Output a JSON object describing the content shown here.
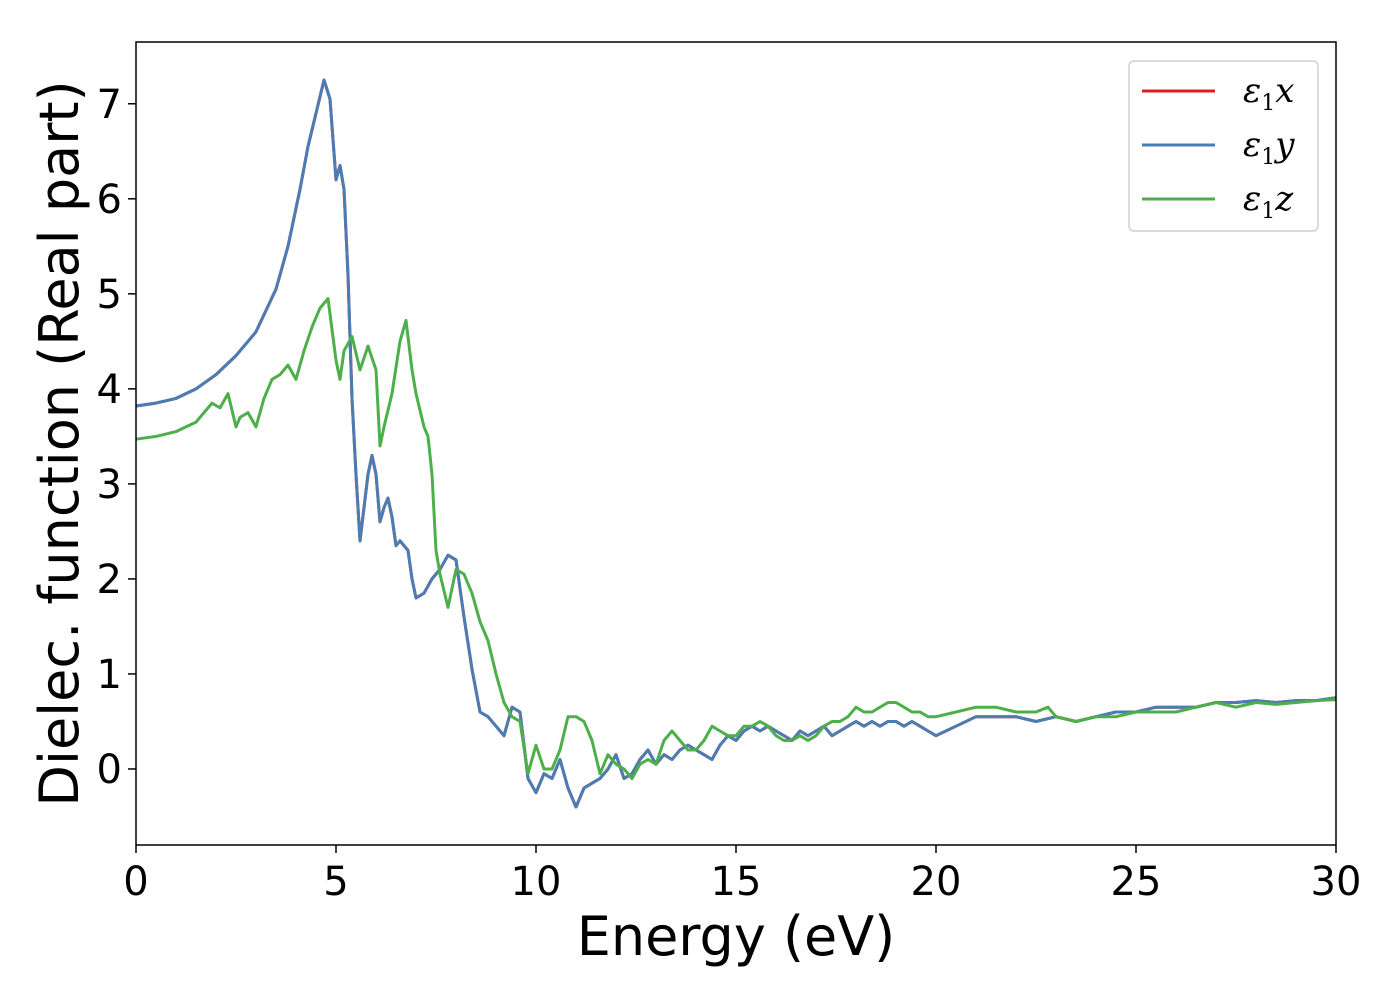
{
  "chart_data": {
    "type": "line",
    "title": "",
    "xlabel": "Energy (eV)",
    "ylabel": "Dielec. function (Real part)",
    "xlim": [
      0,
      30
    ],
    "ylim": [
      -0.8,
      7.65
    ],
    "xticks": [
      0,
      5,
      10,
      15,
      20,
      25,
      30
    ],
    "yticks": [
      0,
      1,
      2,
      3,
      4,
      5,
      6,
      7
    ],
    "grid": false,
    "legend_position": "top-right",
    "series": [
      {
        "name": "ε1x",
        "legend": {
          "base": "ε",
          "sub": "1",
          "tail": "x"
        },
        "color": "#e41a1c",
        "x": [
          0,
          0.5,
          1,
          1.5,
          2,
          2.5,
          3,
          3.5,
          3.8,
          4.1,
          4.3,
          4.5,
          4.7,
          4.85,
          5.0,
          5.1,
          5.2,
          5.3,
          5.4,
          5.5,
          5.6,
          5.8,
          5.9,
          6.0,
          6.1,
          6.2,
          6.3,
          6.4,
          6.5,
          6.6,
          6.8,
          6.9,
          7.0,
          7.2,
          7.4,
          7.6,
          7.8,
          8.0,
          8.2,
          8.4,
          8.6,
          8.8,
          9.0,
          9.2,
          9.4,
          9.6,
          9.8,
          10.0,
          10.2,
          10.4,
          10.6,
          10.8,
          11.0,
          11.2,
          11.4,
          11.6,
          11.8,
          12.0,
          12.2,
          12.4,
          12.6,
          12.8,
          13.0,
          13.2,
          13.4,
          13.6,
          13.8,
          14.0,
          14.2,
          14.4,
          14.6,
          14.8,
          15.0,
          15.2,
          15.4,
          15.6,
          15.8,
          16.0,
          16.2,
          16.4,
          16.6,
          16.8,
          17.0,
          17.2,
          17.4,
          17.6,
          17.8,
          18.0,
          18.2,
          18.4,
          18.6,
          18.8,
          19.0,
          19.2,
          19.4,
          19.6,
          19.8,
          20.0,
          20.5,
          21.0,
          21.5,
          22.0,
          22.5,
          23.0,
          23.5,
          24.0,
          24.5,
          25.0,
          25.5,
          26.0,
          26.5,
          27.0,
          27.5,
          28.0,
          28.5,
          29.0,
          29.5,
          30.0
        ],
        "y": [
          3.82,
          3.85,
          3.9,
          4.0,
          4.15,
          4.35,
          4.6,
          5.05,
          5.5,
          6.1,
          6.55,
          6.9,
          7.25,
          7.05,
          6.2,
          6.35,
          6.1,
          5.2,
          3.9,
          3.1,
          2.4,
          3.1,
          3.3,
          3.1,
          2.6,
          2.75,
          2.85,
          2.65,
          2.35,
          2.4,
          2.3,
          2.0,
          1.8,
          1.85,
          2.0,
          2.1,
          2.25,
          2.2,
          1.6,
          1.05,
          0.6,
          0.55,
          0.45,
          0.35,
          0.65,
          0.6,
          -0.1,
          -0.25,
          -0.05,
          -0.1,
          0.1,
          -0.2,
          -0.4,
          -0.2,
          -0.15,
          -0.1,
          0.0,
          0.15,
          -0.1,
          -0.05,
          0.1,
          0.2,
          0.05,
          0.15,
          0.1,
          0.2,
          0.25,
          0.2,
          0.15,
          0.1,
          0.25,
          0.35,
          0.3,
          0.4,
          0.45,
          0.4,
          0.45,
          0.4,
          0.35,
          0.3,
          0.4,
          0.35,
          0.4,
          0.45,
          0.35,
          0.4,
          0.45,
          0.5,
          0.45,
          0.5,
          0.45,
          0.5,
          0.5,
          0.45,
          0.5,
          0.45,
          0.4,
          0.35,
          0.45,
          0.55,
          0.55,
          0.55,
          0.5,
          0.55,
          0.5,
          0.55,
          0.6,
          0.6,
          0.65,
          0.65,
          0.65,
          0.7,
          0.7,
          0.72,
          0.7,
          0.72,
          0.72,
          0.75
        ]
      },
      {
        "name": "ε1y",
        "legend": {
          "base": "ε",
          "sub": "1",
          "tail": "y"
        },
        "color": "#4a7db3",
        "x": [
          0,
          0.5,
          1,
          1.5,
          2,
          2.5,
          3,
          3.5,
          3.8,
          4.1,
          4.3,
          4.5,
          4.7,
          4.85,
          5.0,
          5.1,
          5.2,
          5.3,
          5.4,
          5.5,
          5.6,
          5.8,
          5.9,
          6.0,
          6.1,
          6.2,
          6.3,
          6.4,
          6.5,
          6.6,
          6.8,
          6.9,
          7.0,
          7.2,
          7.4,
          7.6,
          7.8,
          8.0,
          8.2,
          8.4,
          8.6,
          8.8,
          9.0,
          9.2,
          9.4,
          9.6,
          9.8,
          10.0,
          10.2,
          10.4,
          10.6,
          10.8,
          11.0,
          11.2,
          11.4,
          11.6,
          11.8,
          12.0,
          12.2,
          12.4,
          12.6,
          12.8,
          13.0,
          13.2,
          13.4,
          13.6,
          13.8,
          14.0,
          14.2,
          14.4,
          14.6,
          14.8,
          15.0,
          15.2,
          15.4,
          15.6,
          15.8,
          16.0,
          16.2,
          16.4,
          16.6,
          16.8,
          17.0,
          17.2,
          17.4,
          17.6,
          17.8,
          18.0,
          18.2,
          18.4,
          18.6,
          18.8,
          19.0,
          19.2,
          19.4,
          19.6,
          19.8,
          20.0,
          20.5,
          21.0,
          21.5,
          22.0,
          22.5,
          23.0,
          23.5,
          24.0,
          24.5,
          25.0,
          25.5,
          26.0,
          26.5,
          27.0,
          27.5,
          28.0,
          28.5,
          29.0,
          29.5,
          30.0
        ],
        "y": [
          3.82,
          3.85,
          3.9,
          4.0,
          4.15,
          4.35,
          4.6,
          5.05,
          5.5,
          6.1,
          6.55,
          6.9,
          7.25,
          7.05,
          6.2,
          6.35,
          6.1,
          5.2,
          3.9,
          3.1,
          2.4,
          3.1,
          3.3,
          3.1,
          2.6,
          2.75,
          2.85,
          2.65,
          2.35,
          2.4,
          2.3,
          2.0,
          1.8,
          1.85,
          2.0,
          2.1,
          2.25,
          2.2,
          1.6,
          1.05,
          0.6,
          0.55,
          0.45,
          0.35,
          0.65,
          0.6,
          -0.1,
          -0.25,
          -0.05,
          -0.1,
          0.1,
          -0.2,
          -0.4,
          -0.2,
          -0.15,
          -0.1,
          0.0,
          0.15,
          -0.1,
          -0.05,
          0.1,
          0.2,
          0.05,
          0.15,
          0.1,
          0.2,
          0.25,
          0.2,
          0.15,
          0.1,
          0.25,
          0.35,
          0.3,
          0.4,
          0.45,
          0.4,
          0.45,
          0.4,
          0.35,
          0.3,
          0.4,
          0.35,
          0.4,
          0.45,
          0.35,
          0.4,
          0.45,
          0.5,
          0.45,
          0.5,
          0.45,
          0.5,
          0.5,
          0.45,
          0.5,
          0.45,
          0.4,
          0.35,
          0.45,
          0.55,
          0.55,
          0.55,
          0.5,
          0.55,
          0.5,
          0.55,
          0.6,
          0.6,
          0.65,
          0.65,
          0.65,
          0.7,
          0.7,
          0.72,
          0.7,
          0.72,
          0.72,
          0.75
        ]
      },
      {
        "name": "ε1z",
        "legend": {
          "base": "ε",
          "sub": "1",
          "tail": "z"
        },
        "color": "#4daf4a",
        "x": [
          0,
          0.5,
          1,
          1.5,
          1.9,
          2.1,
          2.3,
          2.5,
          2.6,
          2.8,
          3.0,
          3.2,
          3.4,
          3.6,
          3.8,
          4.0,
          4.2,
          4.4,
          4.6,
          4.8,
          5.0,
          5.1,
          5.2,
          5.4,
          5.6,
          5.8,
          6.0,
          6.1,
          6.2,
          6.4,
          6.6,
          6.75,
          6.9,
          7.0,
          7.2,
          7.3,
          7.4,
          7.5,
          7.6,
          7.8,
          8.0,
          8.2,
          8.4,
          8.6,
          8.8,
          9.0,
          9.2,
          9.4,
          9.6,
          9.8,
          10.0,
          10.2,
          10.4,
          10.6,
          10.8,
          11.0,
          11.2,
          11.4,
          11.6,
          11.8,
          12.0,
          12.2,
          12.4,
          12.6,
          12.8,
          13.0,
          13.2,
          13.4,
          13.6,
          13.8,
          14.0,
          14.2,
          14.4,
          14.6,
          14.8,
          15.0,
          15.2,
          15.4,
          15.6,
          15.8,
          16.0,
          16.2,
          16.4,
          16.6,
          16.8,
          17.0,
          17.2,
          17.4,
          17.6,
          17.8,
          18.0,
          18.2,
          18.4,
          18.6,
          18.8,
          19.0,
          19.2,
          19.4,
          19.6,
          19.8,
          20.0,
          20.5,
          21.0,
          21.5,
          22.0,
          22.5,
          22.8,
          23.0,
          23.5,
          24.0,
          24.5,
          25.0,
          25.5,
          26.0,
          26.5,
          27.0,
          27.5,
          28.0,
          28.5,
          29.0,
          29.5,
          30.0
        ],
        "y": [
          3.47,
          3.5,
          3.55,
          3.65,
          3.85,
          3.8,
          3.95,
          3.6,
          3.7,
          3.75,
          3.6,
          3.9,
          4.1,
          4.15,
          4.25,
          4.1,
          4.4,
          4.65,
          4.85,
          4.95,
          4.3,
          4.1,
          4.4,
          4.55,
          4.2,
          4.45,
          4.2,
          3.4,
          3.6,
          3.95,
          4.5,
          4.72,
          4.2,
          3.95,
          3.6,
          3.5,
          3.1,
          2.3,
          2.05,
          1.7,
          2.1,
          2.05,
          1.85,
          1.55,
          1.35,
          1.0,
          0.7,
          0.55,
          0.5,
          -0.05,
          0.25,
          0.0,
          0.0,
          0.2,
          0.55,
          0.55,
          0.5,
          0.3,
          -0.05,
          0.15,
          0.05,
          0.0,
          -0.1,
          0.05,
          0.1,
          0.05,
          0.3,
          0.4,
          0.3,
          0.2,
          0.2,
          0.3,
          0.45,
          0.4,
          0.35,
          0.35,
          0.45,
          0.45,
          0.5,
          0.45,
          0.35,
          0.3,
          0.3,
          0.35,
          0.3,
          0.35,
          0.45,
          0.5,
          0.5,
          0.55,
          0.65,
          0.6,
          0.6,
          0.65,
          0.7,
          0.7,
          0.65,
          0.6,
          0.6,
          0.55,
          0.55,
          0.6,
          0.65,
          0.65,
          0.6,
          0.6,
          0.65,
          0.55,
          0.5,
          0.55,
          0.55,
          0.6,
          0.6,
          0.6,
          0.65,
          0.7,
          0.65,
          0.7,
          0.68,
          0.7,
          0.72,
          0.73
        ]
      }
    ]
  }
}
